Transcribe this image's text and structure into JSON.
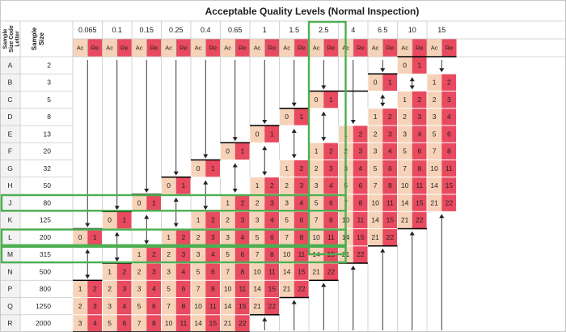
{
  "title": "Acceptable Quality Levels (Normal Inspection)",
  "headers": {
    "letter": "Sample Size Code Letter",
    "size": "Sample Size",
    "ac": "Ac",
    "re": "Re"
  },
  "aql_levels": [
    "0.065",
    "0.1",
    "0.15",
    "0.25",
    "0.4",
    "0.65",
    "1",
    "1.5",
    "2.5",
    "4",
    "6.5",
    "10",
    "15"
  ],
  "code_letters": [
    "A",
    "B",
    "C",
    "D",
    "E",
    "F",
    "G",
    "H",
    "J",
    "K",
    "L",
    "M",
    "N",
    "P",
    "Q",
    "R"
  ],
  "sample_sizes": [
    "2",
    "3",
    "5",
    "8",
    "13",
    "20",
    "32",
    "50",
    "80",
    "125",
    "200",
    "315",
    "500",
    "800",
    "1250",
    "2000"
  ],
  "plans": {
    "note": "each row lists [column index, Ac, Re] for cells that contain acceptance numbers",
    "rows": [
      [
        [
          11,
          0,
          1
        ]
      ],
      [
        [
          10,
          0,
          1
        ],
        [
          12,
          1,
          2
        ]
      ],
      [
        [
          8,
          0,
          1
        ],
        [
          11,
          1,
          2
        ],
        [
          12,
          2,
          3
        ]
      ],
      [
        [
          7,
          0,
          1
        ],
        [
          10,
          1,
          2
        ],
        [
          11,
          2,
          3
        ],
        [
          12,
          3,
          4
        ]
      ],
      [
        [
          6,
          0,
          1
        ],
        [
          9,
          1,
          2
        ],
        [
          10,
          2,
          3
        ],
        [
          11,
          3,
          4
        ],
        [
          12,
          5,
          6
        ]
      ],
      [
        [
          5,
          0,
          1
        ],
        [
          8,
          1,
          2
        ],
        [
          9,
          2,
          3
        ],
        [
          10,
          3,
          4
        ],
        [
          11,
          5,
          6
        ],
        [
          12,
          7,
          8
        ]
      ],
      [
        [
          4,
          0,
          1
        ],
        [
          7,
          1,
          2
        ],
        [
          8,
          2,
          3
        ],
        [
          9,
          3,
          4
        ],
        [
          10,
          5,
          6
        ],
        [
          11,
          7,
          8
        ],
        [
          12,
          10,
          11
        ]
      ],
      [
        [
          3,
          0,
          1
        ],
        [
          6,
          1,
          2
        ],
        [
          7,
          2,
          3
        ],
        [
          8,
          3,
          4
        ],
        [
          9,
          5,
          6
        ],
        [
          10,
          7,
          8
        ],
        [
          11,
          10,
          11
        ],
        [
          12,
          14,
          15
        ]
      ],
      [
        [
          2,
          0,
          1
        ],
        [
          5,
          1,
          2
        ],
        [
          6,
          2,
          3
        ],
        [
          7,
          3,
          4
        ],
        [
          8,
          5,
          6
        ],
        [
          9,
          7,
          8
        ],
        [
          10,
          10,
          11
        ],
        [
          11,
          14,
          15
        ],
        [
          12,
          21,
          22
        ]
      ],
      [
        [
          1,
          0,
          1
        ],
        [
          4,
          1,
          2
        ],
        [
          5,
          2,
          3
        ],
        [
          6,
          3,
          4
        ],
        [
          7,
          5,
          6
        ],
        [
          8,
          7,
          8
        ],
        [
          9,
          10,
          11
        ],
        [
          10,
          14,
          15
        ],
        [
          11,
          21,
          22
        ]
      ],
      [
        [
          0,
          0,
          1
        ],
        [
          3,
          1,
          2
        ],
        [
          4,
          2,
          3
        ],
        [
          5,
          3,
          4
        ],
        [
          6,
          5,
          6
        ],
        [
          7,
          7,
          8
        ],
        [
          8,
          10,
          11
        ],
        [
          9,
          14,
          15
        ],
        [
          10,
          21,
          22
        ]
      ],
      [
        [
          2,
          1,
          2
        ],
        [
          3,
          2,
          3
        ],
        [
          4,
          3,
          4
        ],
        [
          5,
          5,
          6
        ],
        [
          6,
          7,
          8
        ],
        [
          7,
          10,
          11
        ],
        [
          8,
          14,
          15
        ],
        [
          9,
          21,
          22
        ]
      ],
      [
        [
          1,
          1,
          2
        ],
        [
          2,
          2,
          3
        ],
        [
          3,
          3,
          4
        ],
        [
          4,
          5,
          6
        ],
        [
          5,
          7,
          8
        ],
        [
          6,
          10,
          11
        ],
        [
          7,
          14,
          15
        ],
        [
          8,
          21,
          22
        ]
      ],
      [
        [
          0,
          1,
          2
        ],
        [
          1,
          2,
          3
        ],
        [
          2,
          3,
          4
        ],
        [
          3,
          5,
          6
        ],
        [
          4,
          7,
          8
        ],
        [
          5,
          10,
          11
        ],
        [
          6,
          14,
          15
        ],
        [
          7,
          21,
          22
        ]
      ],
      [
        [
          0,
          2,
          3
        ],
        [
          1,
          3,
          4
        ],
        [
          2,
          5,
          6
        ],
        [
          3,
          7,
          8
        ],
        [
          4,
          10,
          11
        ],
        [
          5,
          14,
          15
        ],
        [
          6,
          21,
          22
        ]
      ],
      [
        [
          0,
          3,
          4
        ],
        [
          1,
          5,
          6
        ],
        [
          2,
          7,
          8
        ],
        [
          3,
          10,
          11
        ],
        [
          4,
          14,
          15
        ],
        [
          5,
          21,
          22
        ]
      ]
    ]
  },
  "highlights": {
    "column": "2.5",
    "rows": [
      "J",
      "L",
      "M"
    ]
  },
  "colors": {
    "ac_fill": "#f6d3b8",
    "re_fill": "#e84a5f",
    "header_fill": "#ffffff",
    "letter_fill": "#f2f2f2",
    "highlight": "#4caf50",
    "grid": "#c8c8c8",
    "rule": "#000000",
    "text": "#222222"
  }
}
